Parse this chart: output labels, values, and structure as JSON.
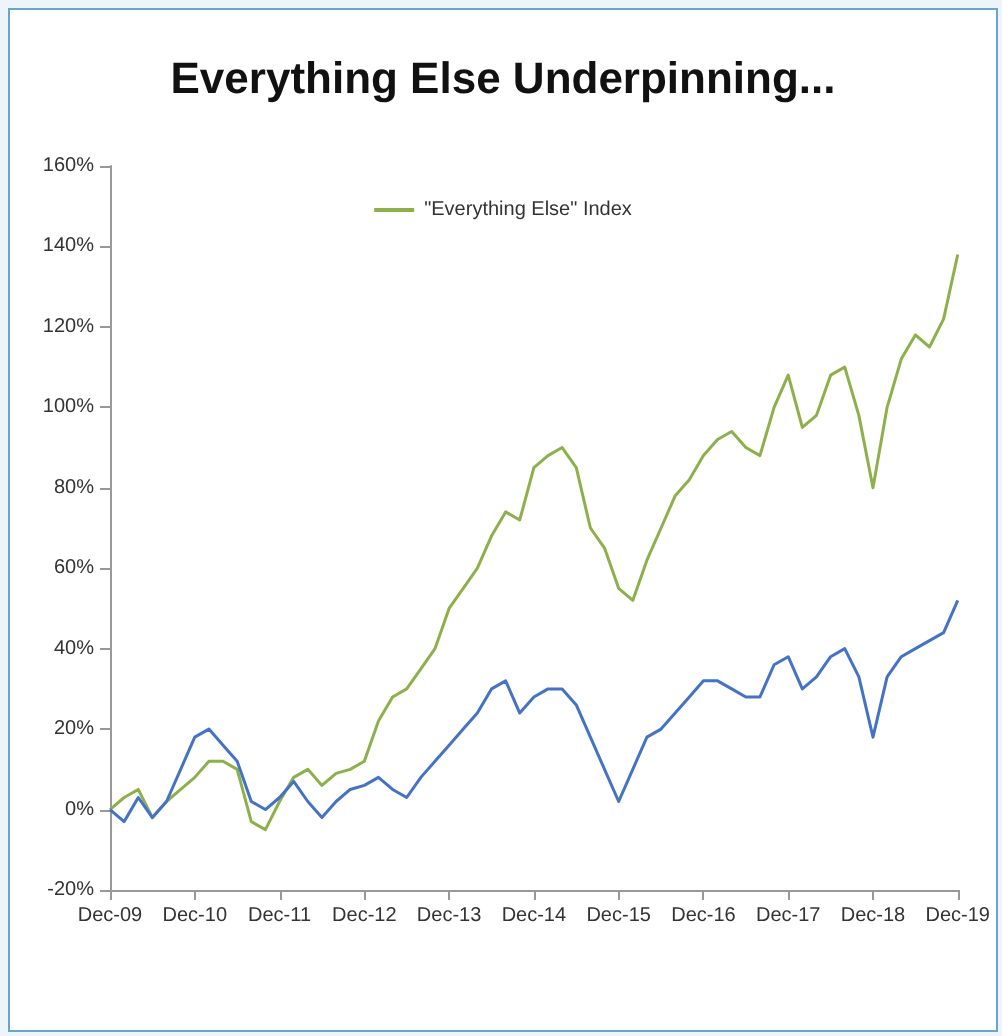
{
  "chart_data": {
    "type": "line",
    "title": "Everything Else Underpinning...",
    "categories": [
      "Dec-09",
      null,
      null,
      null,
      null,
      null,
      "Dec-10",
      null,
      null,
      null,
      null,
      null,
      "Dec-11",
      null,
      null,
      null,
      null,
      null,
      "Dec-12",
      null,
      null,
      null,
      null,
      null,
      "Dec-13",
      null,
      null,
      null,
      null,
      null,
      "Dec-14",
      null,
      null,
      null,
      null,
      null,
      "Dec-15",
      null,
      null,
      null,
      null,
      null,
      "Dec-16",
      null,
      null,
      null,
      null,
      null,
      "Dec-17",
      null,
      null,
      null,
      null,
      null,
      "Dec-18",
      null,
      null,
      null,
      null,
      null,
      "Dec-19"
    ],
    "series": [
      {
        "name": "\"Everything Else\" Index",
        "color": "#8db04a",
        "values": [
          0,
          3,
          5,
          -2,
          2,
          5,
          8,
          12,
          12,
          10,
          -3,
          -5,
          2,
          8,
          10,
          6,
          9,
          10,
          12,
          22,
          28,
          30,
          35,
          40,
          50,
          55,
          60,
          68,
          74,
          72,
          85,
          88,
          90,
          85,
          70,
          65,
          55,
          52,
          62,
          70,
          78,
          82,
          88,
          92,
          94,
          90,
          88,
          100,
          108,
          95,
          98,
          108,
          110,
          98,
          80,
          100,
          112,
          118,
          115,
          122,
          138
        ]
      },
      {
        "color": "#4472c4",
        "values": [
          0,
          -3,
          3,
          -2,
          2,
          10,
          18,
          20,
          16,
          12,
          2,
          0,
          3,
          7,
          2,
          -2,
          2,
          5,
          6,
          8,
          5,
          3,
          8,
          12,
          16,
          20,
          24,
          30,
          32,
          24,
          28,
          30,
          30,
          26,
          18,
          10,
          2,
          10,
          18,
          20,
          24,
          28,
          32,
          32,
          30,
          28,
          28,
          36,
          38,
          30,
          33,
          38,
          40,
          33,
          18,
          33,
          38,
          40,
          42,
          44,
          52
        ]
      }
    ],
    "ylim": [
      -20,
      160
    ],
    "yticks": [
      {
        "value": -20,
        "label": "-20%"
      },
      {
        "value": 0,
        "label": "0%"
      },
      {
        "value": 20,
        "label": "20%"
      },
      {
        "value": 40,
        "label": "40%"
      },
      {
        "value": 60,
        "label": "60%"
      },
      {
        "value": 80,
        "label": "80%"
      },
      {
        "value": 100,
        "label": "100%"
      },
      {
        "value": 120,
        "label": "120%"
      },
      {
        "value": 140,
        "label": "140%"
      },
      {
        "value": 160,
        "label": "160%"
      }
    ],
    "legend": "top",
    "marker": "none",
    "line_style": "solid",
    "grid": false
  }
}
